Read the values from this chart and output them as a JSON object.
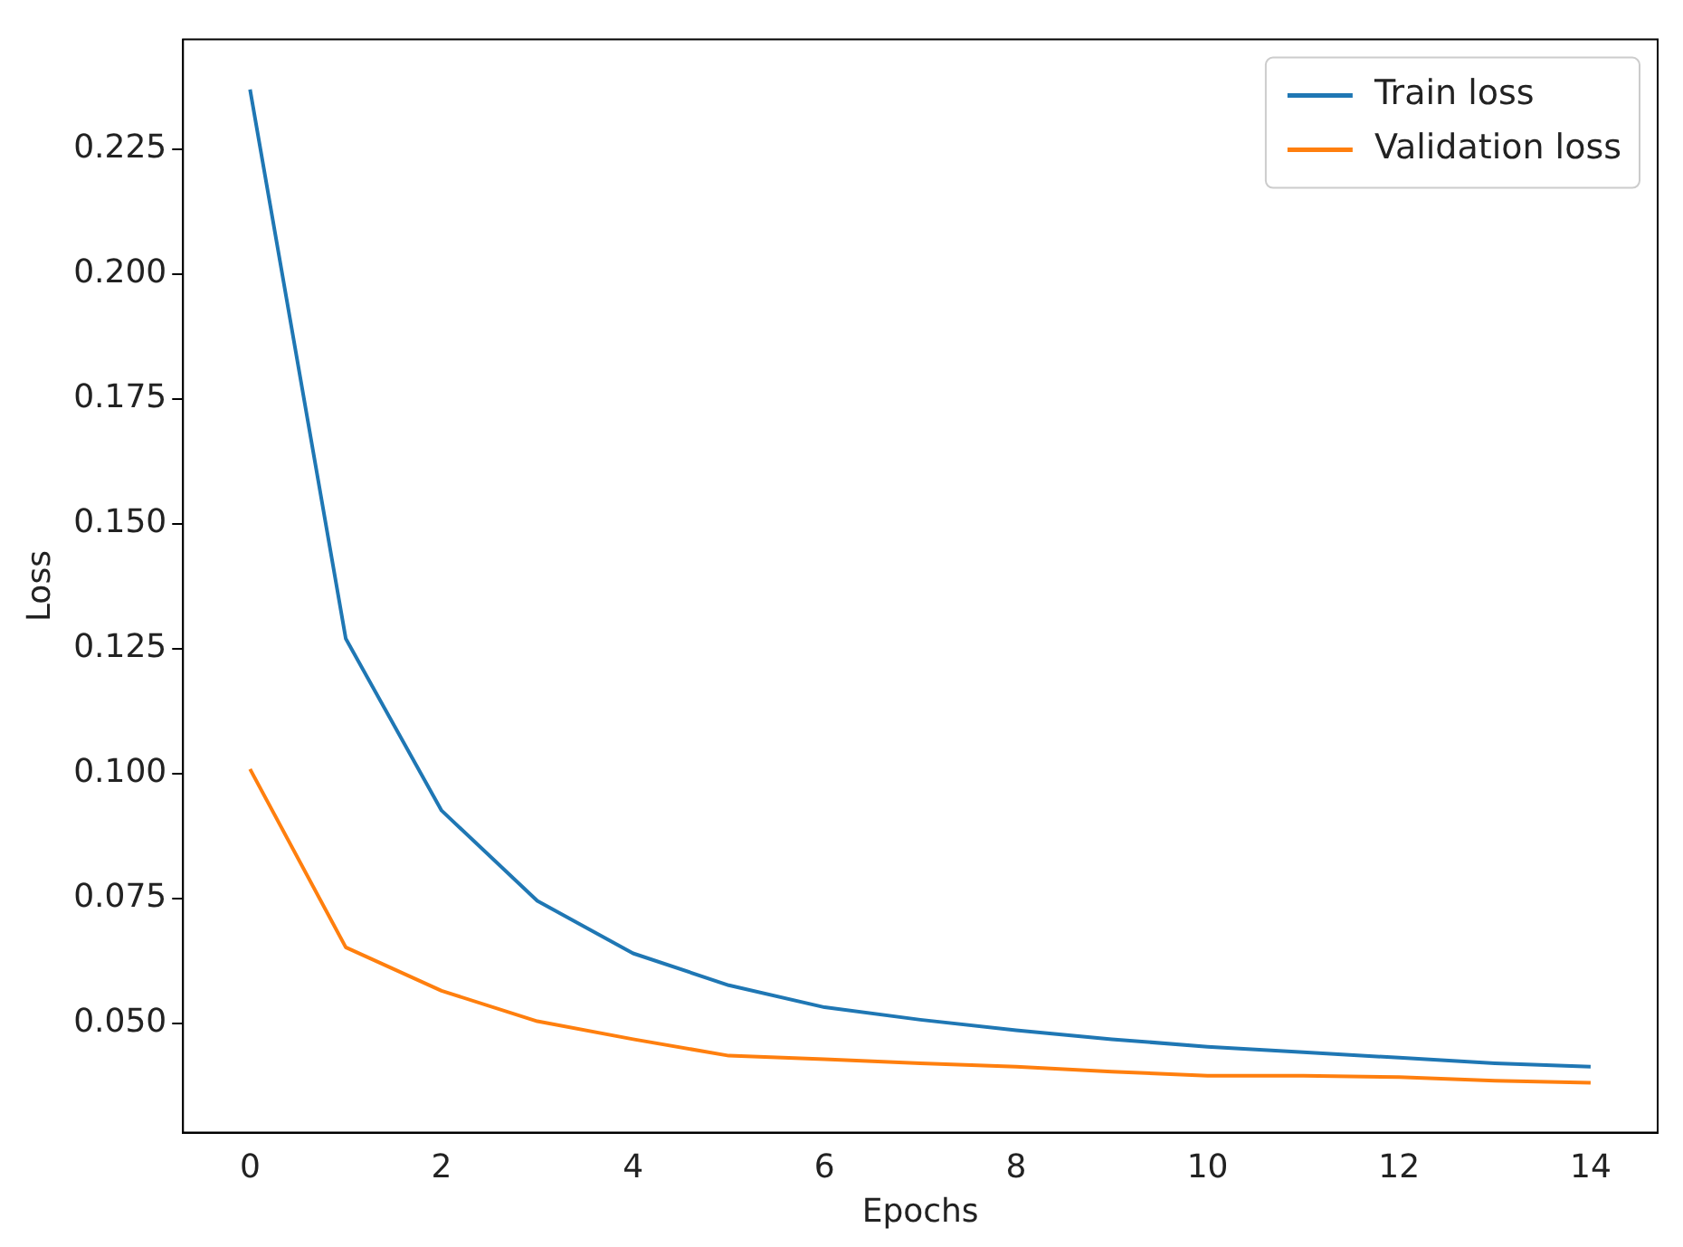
{
  "chart_data": {
    "type": "line",
    "xlabel": "Epochs",
    "ylabel": "Loss",
    "x": [
      0,
      1,
      2,
      3,
      4,
      5,
      6,
      7,
      8,
      9,
      10,
      11,
      12,
      13,
      14
    ],
    "series": [
      {
        "name": "Train loss",
        "color": "#1f77b4",
        "values": [
          0.237,
          0.127,
          0.0926,
          0.0745,
          0.064,
          0.0576,
          0.0532,
          0.0507,
          0.0486,
          0.0468,
          0.0453,
          0.0442,
          0.0431,
          0.042,
          0.0413
        ]
      },
      {
        "name": "Validation loss",
        "color": "#ff7f0e",
        "values": [
          0.1009,
          0.0652,
          0.0565,
          0.0504,
          0.0468,
          0.0435,
          0.0428,
          0.042,
          0.0413,
          0.0403,
          0.0395,
          0.0395,
          0.0392,
          0.0385,
          0.0381
        ]
      }
    ],
    "xlim": [
      -0.7,
      14.7
    ],
    "xticks": [
      0,
      2,
      4,
      6,
      8,
      10,
      12,
      14
    ],
    "ylim": [
      0.0281,
      0.247
    ],
    "yticks": [
      {
        "value": 0.05,
        "label": "0.050"
      },
      {
        "value": 0.075,
        "label": "0.075"
      },
      {
        "value": 0.1,
        "label": "0.100"
      },
      {
        "value": 0.125,
        "label": "0.125"
      },
      {
        "value": 0.15,
        "label": "0.150"
      },
      {
        "value": 0.175,
        "label": "0.175"
      },
      {
        "value": 0.2,
        "label": "0.200"
      },
      {
        "value": 0.225,
        "label": "0.225"
      }
    ],
    "legend": "top right",
    "grid": false,
    "marker": "none",
    "line_style": "solid"
  }
}
